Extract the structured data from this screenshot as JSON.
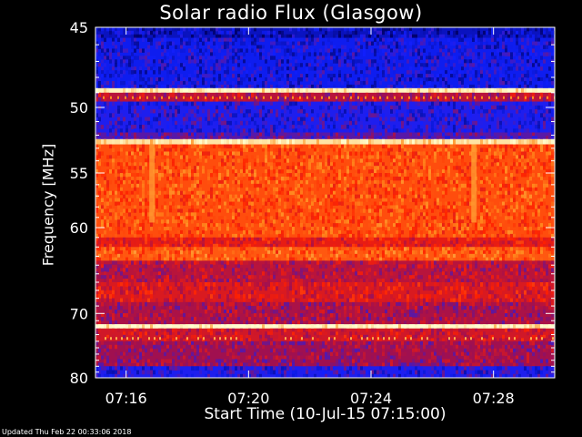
{
  "chart_data": {
    "type": "heatmap",
    "title": "Solar radio Flux (Glasgow)",
    "xlabel": "Start Time (10-Jul-15 07:15:00)",
    "ylabel": "Frequency [MHz]",
    "x_range": [
      "07:15:00",
      "07:30:00"
    ],
    "x_ticks": [
      "07:16",
      "07:20",
      "07:24",
      "07:28"
    ],
    "y_range": [
      45,
      80
    ],
    "y_ticks": [
      "45",
      "50",
      "55",
      "60",
      "70",
      "80"
    ],
    "y_tick_values": [
      45,
      50,
      55,
      60,
      70,
      80
    ],
    "y_scale": "reciprocal",
    "colormap": [
      "#000060",
      "#1020ff",
      "#a01050",
      "#ff2000",
      "#ff9020",
      "#ffffd0"
    ],
    "bands": [
      {
        "from": 45.0,
        "to": 45.6,
        "level": 0.12
      },
      {
        "from": 45.6,
        "to": 48.7,
        "level": 0.18
      },
      {
        "from": 48.7,
        "to": 49.0,
        "level": 0.98
      },
      {
        "from": 49.0,
        "to": 49.6,
        "level": 0.45
      },
      {
        "from": 49.6,
        "to": 51.8,
        "level": 0.22
      },
      {
        "from": 51.8,
        "to": 52.3,
        "level": 0.3
      },
      {
        "from": 52.3,
        "to": 52.7,
        "level": 0.95
      },
      {
        "from": 52.7,
        "to": 61.0,
        "level": 0.68
      },
      {
        "from": 61.0,
        "to": 62.0,
        "level": 0.55
      },
      {
        "from": 62.0,
        "to": 63.5,
        "level": 0.7
      },
      {
        "from": 63.5,
        "to": 66.0,
        "level": 0.45
      },
      {
        "from": 66.0,
        "to": 68.5,
        "level": 0.52
      },
      {
        "from": 68.5,
        "to": 71.5,
        "level": 0.42
      },
      {
        "from": 71.5,
        "to": 72.1,
        "level": 0.99
      },
      {
        "from": 72.1,
        "to": 74.0,
        "level": 0.5
      },
      {
        "from": 74.0,
        "to": 78.0,
        "level": 0.4
      },
      {
        "from": 78.0,
        "to": 80.0,
        "level": 0.22
      }
    ]
  },
  "footer": "Updated Thu Feb 22 00:33:06 2018"
}
